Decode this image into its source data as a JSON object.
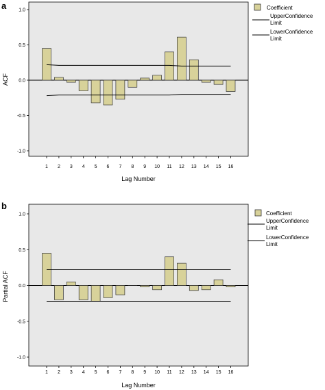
{
  "colors": {
    "bar": "#d8d29a",
    "bar_stroke": "#333333",
    "plot_bg": "#e8e8e8",
    "line": "#000000"
  },
  "chart_data": [
    {
      "type": "bar",
      "panel_letter": "a",
      "ylabel": "ACF",
      "xlabel": "Lag Number",
      "ylim": [
        -1.0,
        1.0
      ],
      "ytick_labels": [
        "1.0",
        "0.5",
        "0.0",
        "-0.5",
        "-1.0"
      ],
      "ytick_values": [
        1.0,
        0.5,
        0.0,
        -0.5,
        -1.0
      ],
      "categories": [
        "1",
        "2",
        "3",
        "4",
        "5",
        "6",
        "7",
        "8",
        "9",
        "10",
        "11",
        "12",
        "13",
        "14",
        "15",
        "16"
      ],
      "series": [
        {
          "name": "Coefficient",
          "values": [
            0.45,
            0.04,
            -0.03,
            -0.15,
            -0.32,
            -0.35,
            -0.27,
            -0.1,
            0.03,
            0.07,
            0.4,
            0.61,
            0.29,
            -0.03,
            -0.06,
            -0.16
          ]
        }
      ],
      "upper_confidence": [
        0.22,
        0.21,
        0.21,
        0.21,
        0.21,
        0.21,
        0.21,
        0.21,
        0.21,
        0.21,
        0.21,
        0.2,
        0.2,
        0.2,
        0.2,
        0.2
      ],
      "lower_confidence": [
        -0.22,
        -0.21,
        -0.21,
        -0.21,
        -0.21,
        -0.21,
        -0.21,
        -0.21,
        -0.21,
        -0.21,
        -0.21,
        -0.2,
        -0.2,
        -0.2,
        -0.2,
        -0.2
      ],
      "legend": {
        "coefficient": "Coefficient",
        "upper_line1": "UpperConfidence",
        "upper_line2": "Limit",
        "lower_line1": "LowerConfidence",
        "lower_line2": "Limit"
      }
    },
    {
      "type": "bar",
      "panel_letter": "b",
      "ylabel": "Partial ACF",
      "xlabel": "Lag Number",
      "ylim": [
        -1.0,
        1.0
      ],
      "ytick_labels": [
        "1.0",
        "0.5",
        "0.0",
        "-0.5",
        "-1.0"
      ],
      "ytick_values": [
        1.0,
        0.5,
        0.0,
        -0.5,
        -1.0
      ],
      "categories": [
        "1",
        "2",
        "3",
        "4",
        "5",
        "6",
        "7",
        "8",
        "9",
        "10",
        "11",
        "12",
        "13",
        "14",
        "15",
        "16"
      ],
      "series": [
        {
          "name": "Coefficient",
          "values": [
            0.45,
            -0.2,
            0.05,
            -0.2,
            -0.22,
            -0.17,
            -0.13,
            0.0,
            -0.02,
            -0.06,
            0.4,
            0.31,
            -0.07,
            -0.06,
            0.08,
            -0.02
          ]
        }
      ],
      "upper_confidence": [
        0.22,
        0.22,
        0.22,
        0.22,
        0.22,
        0.22,
        0.22,
        0.22,
        0.22,
        0.22,
        0.22,
        0.22,
        0.22,
        0.22,
        0.22,
        0.22
      ],
      "lower_confidence": [
        -0.22,
        -0.22,
        -0.22,
        -0.22,
        -0.22,
        -0.22,
        -0.22,
        -0.22,
        -0.22,
        -0.22,
        -0.22,
        -0.22,
        -0.22,
        -0.22,
        -0.22,
        -0.22
      ],
      "legend": {
        "coefficient": "Coefficient",
        "upper_line1": "UpperConfidence",
        "upper_line2": "Limit",
        "lower_line1": "LowerConfidence",
        "lower_line2": "Limit"
      }
    }
  ]
}
